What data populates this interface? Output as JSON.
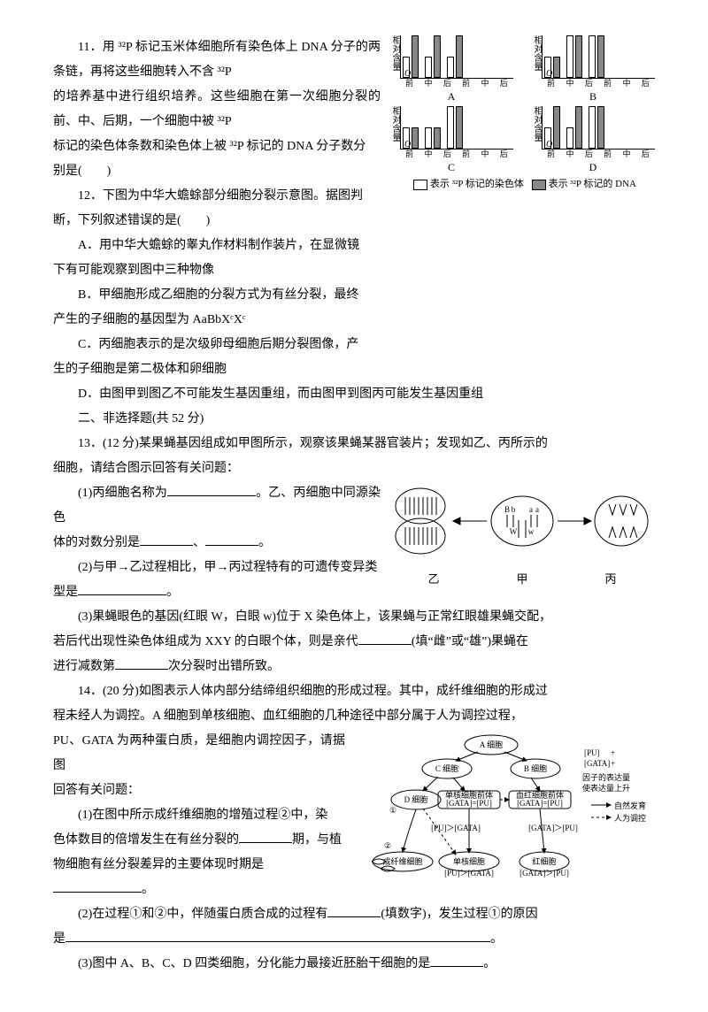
{
  "q11": {
    "text_a": "11．用 ³²P 标记玉米体细胞所有染色体上 DNA 分子的两条链，再将这些细胞转入不含 ³²P",
    "text_b": "的培养基中进行组织培养。这些细胞在第一次细胞分裂的前、中、后期，一个细胞中被 ³²P",
    "text_c": "标记的染色体条数和染色体上被 ³²P 标记的 DNA 分子数分",
    "text_d": "别是(　　)",
    "chart": {
      "ylabel": "相对含量",
      "yticks": [
        "1",
        "2"
      ],
      "xticks": [
        "前",
        "中",
        "后",
        "前",
        "中",
        "后"
      ],
      "legend_white": "表示 ³²P 标记的染色体",
      "legend_gray": "表示 ³²P 标记的 DNA",
      "heights_unit": 24,
      "panels": [
        {
          "letter": "A",
          "white": [
            1,
            1,
            1
          ],
          "gray": [
            2,
            2,
            2
          ]
        },
        {
          "letter": "B",
          "white": [
            1,
            2,
            2
          ],
          "gray": [
            1,
            2,
            2
          ]
        },
        {
          "letter": "C",
          "white": [
            1,
            1,
            2
          ],
          "gray": [
            1,
            1,
            2
          ]
        },
        {
          "letter": "D",
          "white": [
            1,
            1,
            2
          ],
          "gray": [
            2,
            2,
            2
          ]
        }
      ]
    }
  },
  "q12": {
    "intro_a": "12．下图为中华大蟾蜍部分细胞分裂示意图。据图判",
    "intro_b": "断，下列叙述错误的是(　　)",
    "opt_a1": "A．用中华大蟾蜍的睾丸作材料制作装片，在显微镜",
    "opt_a2": "下有可能观察到图中三种物像",
    "opt_b1": "B．甲细胞形成乙细胞的分裂方式为有丝分裂，最终",
    "opt_b2": "产生的子细胞的基因型为 AaBbXᶜXᶜ",
    "opt_c1": "C．丙细胞表示的是次级卵母细胞后期分裂图像，产",
    "opt_c2": "生的子细胞是第二极体和卵细胞",
    "opt_d": "D．由图甲到图乙不可能发生基因重组，而由图甲到图丙可能发生基因重组"
  },
  "section2": "二、非选择题(共 52 分)",
  "q13": {
    "lead_a": "13．(12 分)某果蝇基因组成如甲图所示，观察该果蝇某器官装片；发现如乙、丙所示的",
    "lead_b": "细胞，请结合图示回答有关问题：",
    "p1a": "(1)丙细胞名称为",
    "p1b": "。乙、丙细胞中同源染色",
    "p1c": "体的对数分别是",
    "sep": "、",
    "p1d": "。",
    "p2a": "(2)与甲→乙过程相比，甲→丙过程特有的可遗传变异类",
    "p2b": "型是",
    "p2c": "。",
    "p3a": "(3)果蝇眼色的基因(红眼 W，白眼 w)位于 X 染色体上，该果蝇与正常红眼雄果蝇交配，",
    "p3b": "若后代出现性染色体组成为 XXY 的白眼个体，则是亲代",
    "p3c": "(填“雌”或“雄”)果蝇在",
    "p3d": "进行减数第",
    "p3e": "次分裂时出错所致。",
    "labels": {
      "yi": "乙",
      "jia": "甲",
      "bing": "丙"
    },
    "alleles": {
      "B": "B",
      "b": "b",
      "a": "a",
      "W": "W",
      "w": "w"
    }
  },
  "q14": {
    "lead_a": "14．(20 分)如图表示人体内部分结缔组织细胞的形成过程。其中，成纤维细胞的形成过",
    "lead_b": "程未经人为调控。A 细胞到单核细胞、血红细胞的几种途径中部分属于人为调控过程，",
    "lead_c": "PU、GATA 为两种蛋白质，是细胞内调控因子，请据图",
    "lead_d": "回答有关问题：",
    "p1a": "(1)在图中所示成纤维细胞的增殖过程②中，染",
    "p1b": "色体数目的倍增发生在有丝分裂的",
    "p1c": "期，与植",
    "p1d": "物细胞有丝分裂差异的主要体现时期是",
    "p1e": "。",
    "p2a": "(2)在过程①和②中，伴随蛋白质合成的过程有",
    "p2b": "(填数字)，发生过程①的原因",
    "p2c": "是",
    "p2d": "。",
    "p3a": "(3)图中 A、B、C、D 四类细胞，分化能力最接近胚胎干细胞的是",
    "p3b": "。",
    "nodes": {
      "A": "A 细胞",
      "B": "B 细胞",
      "C": "C 细胞",
      "D": "D 细胞",
      "mono_pre": "单核细胞前体",
      "rbc_pre": "血红细胞前体",
      "mono": "单核细胞",
      "rbc": "红细胞",
      "fib": "成纤维细胞",
      "pu": "PU",
      "gata": "GATA",
      "g_pu": "[PU]＞[GATA]",
      "g_ga": "[GATA]＞[PU]",
      "eq": "[GATA]=[PU]",
      "side1": "因子的表达量",
      "side2": "使表达量上升",
      "nat": "自然发育",
      "man": "人为调控",
      "one": "①",
      "two": "②"
    }
  }
}
